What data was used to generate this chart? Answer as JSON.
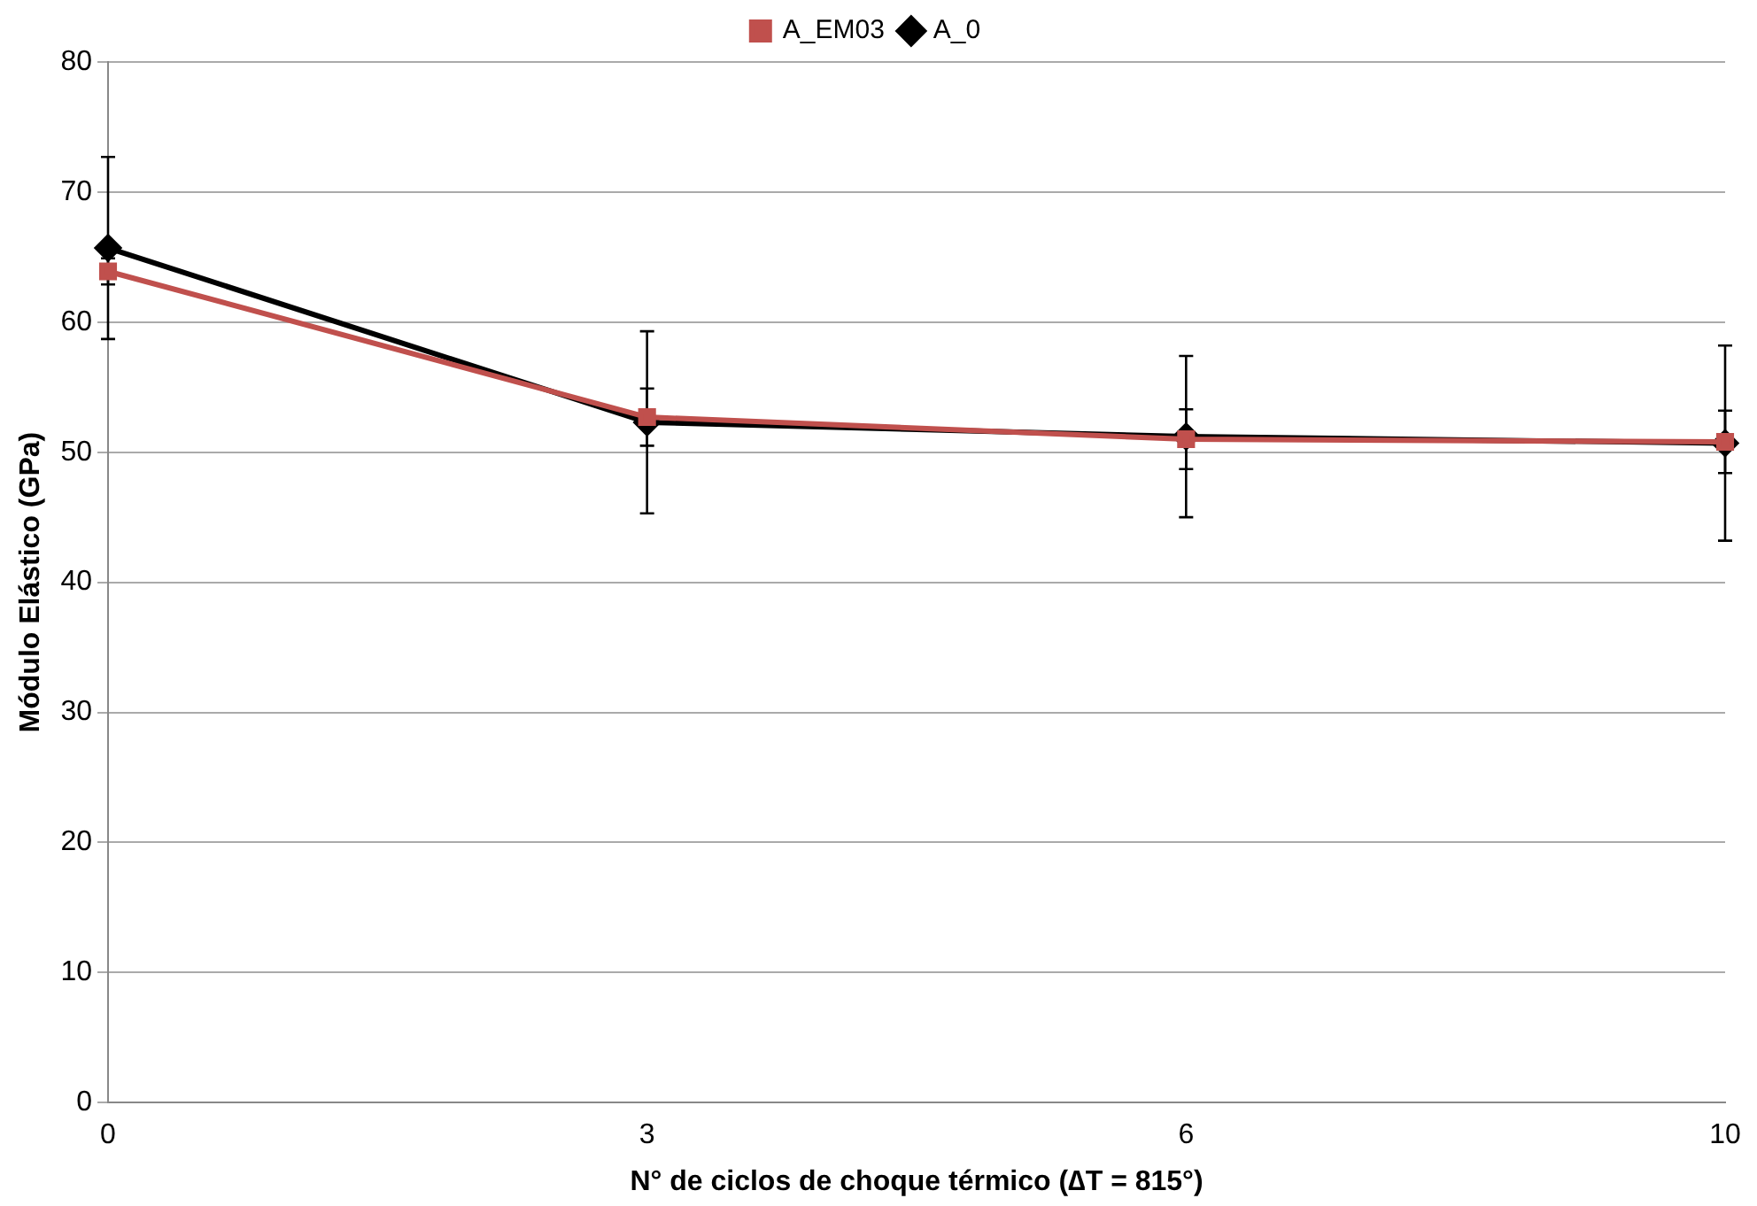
{
  "chart_data": {
    "type": "line",
    "xlabel": "N° de ciclos de choque térmico (∆T = 815°)",
    "ylabel": "Módulo Elástico (GPa)",
    "categories": [
      "0",
      "3",
      "6",
      "10"
    ],
    "series": [
      {
        "name": "A_0",
        "color": "#000000",
        "marker": "diamond",
        "values": [
          65.7,
          52.3,
          51.2,
          50.7
        ],
        "errors": [
          7,
          7,
          6.2,
          7.5
        ]
      },
      {
        "name": "A_EM03",
        "color": "#c0504d",
        "marker": "square",
        "values": [
          63.9,
          52.7,
          51.0,
          50.8
        ],
        "errors": [
          1,
          2.2,
          2.3,
          2.4
        ]
      }
    ],
    "ylim": [
      0,
      80
    ],
    "yticks": [
      0,
      10,
      20,
      30,
      40,
      50,
      60,
      70,
      80
    ],
    "grid": "y",
    "legend": "top"
  }
}
